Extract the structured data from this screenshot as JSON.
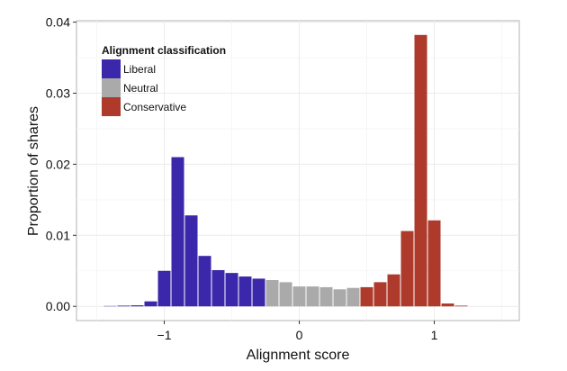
{
  "chart_data": {
    "type": "bar",
    "title": "",
    "xlabel": "Alignment score",
    "ylabel": "Proportion of shares",
    "xlim": [
      -1.65,
      1.63
    ],
    "ylim": [
      -0.002,
      0.0402
    ],
    "grid": true,
    "x_ticks": [
      -1,
      0,
      1
    ],
    "x_tick_labels": [
      "−1",
      "0",
      "1"
    ],
    "y_ticks": [
      0,
      0.01,
      0.02,
      0.03,
      0.04
    ],
    "y_tick_labels": [
      "0.00",
      "0.01",
      "0.02",
      "0.03",
      "0.04"
    ],
    "legend": {
      "title": "Alignment classification",
      "placement": "top-left",
      "entries": [
        {
          "label": "Liberal",
          "color": "#3b27a9"
        },
        {
          "label": "Neutral",
          "color": "#aaaaaa"
        },
        {
          "label": "Conservative",
          "color": "#ad3a2b"
        }
      ]
    },
    "bin_width": 0.1,
    "bars": [
      {
        "x": -1.4,
        "y": 5e-05,
        "class": "Liberal"
      },
      {
        "x": -1.3,
        "y": 0.0001,
        "class": "Liberal"
      },
      {
        "x": -1.2,
        "y": 0.00015,
        "class": "Liberal"
      },
      {
        "x": -1.1,
        "y": 0.0007,
        "class": "Liberal"
      },
      {
        "x": -1.0,
        "y": 0.005,
        "class": "Liberal"
      },
      {
        "x": -0.9,
        "y": 0.021,
        "class": "Liberal"
      },
      {
        "x": -0.8,
        "y": 0.0128,
        "class": "Liberal"
      },
      {
        "x": -0.7,
        "y": 0.0071,
        "class": "Liberal"
      },
      {
        "x": -0.6,
        "y": 0.0051,
        "class": "Liberal"
      },
      {
        "x": -0.5,
        "y": 0.0047,
        "class": "Liberal"
      },
      {
        "x": -0.4,
        "y": 0.0042,
        "class": "Liberal"
      },
      {
        "x": -0.3,
        "y": 0.0039,
        "class": "Liberal"
      },
      {
        "x": -0.2,
        "y": 0.0037,
        "class": "Neutral"
      },
      {
        "x": -0.1,
        "y": 0.0034,
        "class": "Neutral"
      },
      {
        "x": 0.0,
        "y": 0.0028,
        "class": "Neutral"
      },
      {
        "x": 0.1,
        "y": 0.0028,
        "class": "Neutral"
      },
      {
        "x": 0.2,
        "y": 0.0027,
        "class": "Neutral"
      },
      {
        "x": 0.3,
        "y": 0.0024,
        "class": "Neutral"
      },
      {
        "x": 0.4,
        "y": 0.0026,
        "class": "Neutral"
      },
      {
        "x": 0.5,
        "y": 0.0027,
        "class": "Conservative"
      },
      {
        "x": 0.6,
        "y": 0.0034,
        "class": "Conservative"
      },
      {
        "x": 0.7,
        "y": 0.0045,
        "class": "Conservative"
      },
      {
        "x": 0.8,
        "y": 0.0106,
        "class": "Conservative"
      },
      {
        "x": 0.9,
        "y": 0.0382,
        "class": "Conservative"
      },
      {
        "x": 1.0,
        "y": 0.0121,
        "class": "Conservative"
      },
      {
        "x": 1.1,
        "y": 0.0004,
        "class": "Conservative"
      },
      {
        "x": 1.2,
        "y": 0.0001,
        "class": "Conservative"
      }
    ]
  }
}
